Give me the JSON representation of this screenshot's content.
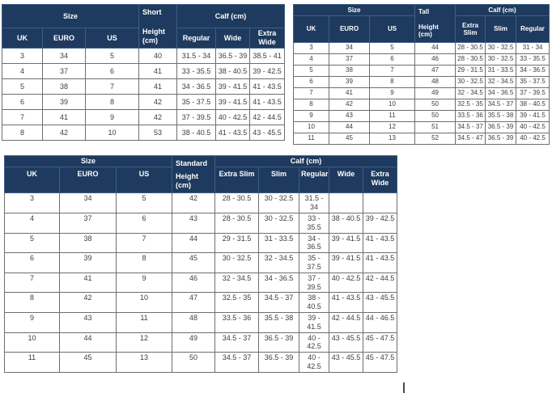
{
  "colors": {
    "header_bg": "#1e3a5e",
    "header_text": "#ffffff",
    "body_text": "#3d3d3d",
    "grid_line": "#6e6e6e",
    "header_grid_line": "#3f5d85"
  },
  "tables": [
    {
      "name": "short-boots-size-table",
      "size_header": "Size",
      "height_title": "Short",
      "height_subtitle": "Height (cm)",
      "calf_header": "Calf (cm)",
      "size_columns": [
        "UK",
        "EURO",
        "US"
      ],
      "calf_columns": [
        "Regular",
        "Wide",
        "Extra Wide"
      ],
      "rows": [
        [
          "3",
          "34",
          "5",
          "40",
          "31.5 - 34",
          "36.5 - 39",
          "38.5 - 41"
        ],
        [
          "4",
          "37",
          "6",
          "41",
          "33 - 35.5",
          "38 - 40.5",
          "39 - 42.5"
        ],
        [
          "5",
          "38",
          "7",
          "41",
          "34 - 36.5",
          "39 - 41.5",
          "41 - 43.5"
        ],
        [
          "6",
          "39",
          "8",
          "42",
          "35 - 37.5",
          "39 - 41.5",
          "41 - 43.5"
        ],
        [
          "7",
          "41",
          "9",
          "42",
          "37 - 39.5",
          "40 - 42.5",
          "42 - 44.5"
        ],
        [
          "8",
          "42",
          "10",
          "53",
          "38 - 40.5",
          "41 - 43.5",
          "43 - 45.5"
        ]
      ]
    },
    {
      "name": "tall-boots-size-table",
      "size_header": "Size",
      "height_title": "Tall",
      "height_subtitle": "Height (cm)",
      "calf_header": "Calf (cm)",
      "size_columns": [
        "UK",
        "EURO",
        "US"
      ],
      "calf_columns": [
        "Extra Slim",
        "Slim",
        "Regular"
      ],
      "rows": [
        [
          "3",
          "34",
          "5",
          "44",
          "28 - 30.5",
          "30 - 32.5",
          "31 - 34"
        ],
        [
          "4",
          "37",
          "6",
          "46",
          "28 - 30.5",
          "30 - 32.5",
          "33 - 35.5"
        ],
        [
          "5",
          "38",
          "7",
          "47",
          "29 - 31.5",
          "31 - 33.5",
          "34 - 36.5"
        ],
        [
          "6",
          "39",
          "8",
          "48",
          "30 - 32.5",
          "32 - 34.5",
          "35 - 37.5"
        ],
        [
          "7",
          "41",
          "9",
          "49",
          "32 - 34.5",
          "34 - 36.5",
          "37 - 39.5"
        ],
        [
          "8",
          "42",
          "10",
          "50",
          "32.5 - 35",
          "34.5 - 37",
          "38 - 40.5"
        ],
        [
          "9",
          "43",
          "11",
          "50",
          "33.5 - 36",
          "35.5 - 38",
          "39 - 41.5"
        ],
        [
          "10",
          "44",
          "12",
          "51",
          "34.5 - 37",
          "36.5 - 39",
          "40 - 42.5"
        ],
        [
          "11",
          "45",
          "13",
          "52",
          "34.5 - 47",
          "36.5 - 39",
          "40 - 42.5"
        ]
      ]
    },
    {
      "name": "standard-boots-size-table",
      "size_header": "Size",
      "height_title": "Standard",
      "height_subtitle": "Height (cm)",
      "calf_header": "Calf (cm)",
      "size_columns": [
        "UK",
        "EURO",
        "US"
      ],
      "calf_columns": [
        "Extra Slim",
        "Slim",
        "Regular",
        "Wide",
        "Extra Wide"
      ],
      "rows": [
        [
          "3",
          "34",
          "5",
          "42",
          "28 - 30.5",
          "30 - 32.5",
          "31.5 - 34",
          "",
          ""
        ],
        [
          "4",
          "37",
          "6",
          "43",
          "28 - 30.5",
          "30 - 32.5",
          "33 - 35.5",
          "38 - 40.5",
          "39 - 42.5"
        ],
        [
          "5",
          "38",
          "7",
          "44",
          "29 - 31.5",
          "31 - 33.5",
          "34 - 36.5",
          "39 - 41.5",
          "41 - 43.5"
        ],
        [
          "6",
          "39",
          "8",
          "45",
          "30 - 32.5",
          "32 - 34.5",
          "35 - 37.5",
          "39 - 41.5",
          "41 - 43.5"
        ],
        [
          "7",
          "41",
          "9",
          "46",
          "32 - 34.5",
          "34 - 36.5",
          "37 - 39.5",
          "40 - 42.5",
          "42 - 44.5"
        ],
        [
          "8",
          "42",
          "10",
          "47",
          "32.5 - 35",
          "34.5 - 37",
          "38 - 40.5",
          "41 - 43.5",
          "43 - 45.5"
        ],
        [
          "9",
          "43",
          "11",
          "48",
          "33.5 - 36",
          "35.5 - 38",
          "39 - 41.5",
          "42 - 44.5",
          "44 - 46.5"
        ],
        [
          "10",
          "44",
          "12",
          "49",
          "34.5 - 37",
          "36.5 - 39",
          "40 - 42.5",
          "43 - 45.5",
          "45 - 47.5"
        ],
        [
          "11",
          "45",
          "13",
          "50",
          "34.5 - 37",
          "36.5 - 39",
          "40 - 42.5",
          "43 - 45.5",
          "45 - 47.5"
        ]
      ]
    }
  ]
}
